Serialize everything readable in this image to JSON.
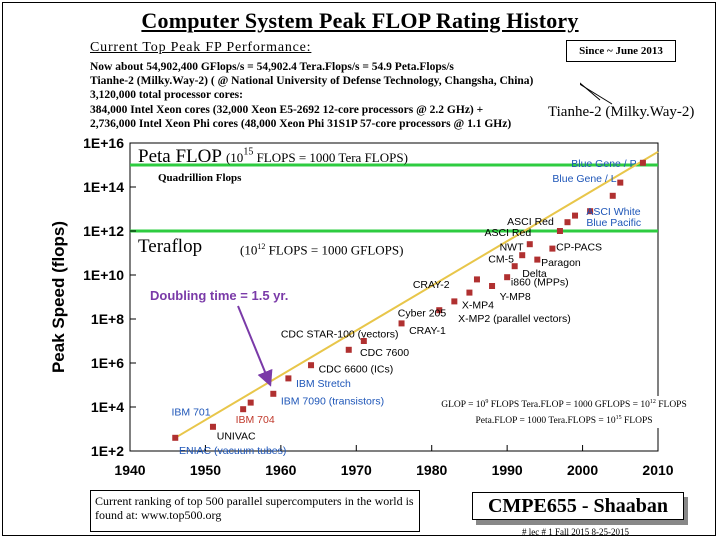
{
  "slide": {
    "title": "Computer System Peak FLOP Rating History",
    "current_perf_heading": "Current Top Peak FP Performance:",
    "current_perf_lines": [
      "Now about 54,902,400 GFlops/s = 54,902.4  Tera.Flops/s = 54.9 Peta.Flops/s",
      "Tianhe-2 (Milky.Way-2)  ( @ National University of Defense Technology, Changsha, China)",
      "3,120,000 total processor cores:",
      "384,000 Intel Xeon cores (32,000 Xeon E5-2692 12-core processors @ 2.2 GHz) +",
      "2,736,000 Intel Xeon Phi cores (48,000 Xeon Phi 31S1P 57-core processors @ 1.1 GHz)"
    ],
    "since_label": "Since ~ June 2013",
    "tianhe_label": "Tianhe-2 (Milky.Way-2)",
    "peta_title": "Peta FLOP",
    "peta_exp_base": "(10",
    "peta_exp_sup": "15",
    "peta_desc": " FLOPS = 1000 Tera FLOPS)",
    "quadrillion_label": "Quadrillion Flops",
    "tera_title": "Teraflop",
    "tera_exp_base": "(10",
    "tera_exp_sup": "12",
    "tera_desc": " FLOPS = 1000 GFLOPS)",
    "doubling_label": "Doubling time = 1.5 yr.",
    "flops_note_line1": {
      "a": "GLOP = 10",
      "a_sup": "9",
      "b": " FLOPS    Tera.FLOP = 1000  GFLOPS = 10",
      "b_sup": "12",
      "c": " FLOPS"
    },
    "flops_note_line2": {
      "a": "Peta.FLOP = 1000 Tera.FLOPS = 10",
      "a_sup": "15",
      "c": " FLOPS"
    },
    "ranking_text": "Current ranking of top 500 parallel supercomputers in the world is found at:  www.top500.org",
    "course_label": "CMPE655 - Shaaban",
    "footer": "#  lec # 1   Fall 2015   8-25-2015"
  },
  "chart_data": {
    "type": "scatter",
    "title": "Computer System Peak FLOP Rating History",
    "ylabel": "Peak Speed (flops)",
    "xlabel": "",
    "x_scale": "linear",
    "y_scale": "log10",
    "xlim": [
      1940,
      2010
    ],
    "ylim_log10": [
      2,
      16
    ],
    "x_ticks": [
      "1940",
      "1950",
      "1960",
      "1970",
      "1980",
      "1990",
      "2000",
      "2010"
    ],
    "y_ticks": [
      "1E+2",
      "1E+4",
      "1E+6",
      "1E+8",
      "1E+10",
      "1E+12",
      "1E+14",
      "1E+16"
    ],
    "grid": false,
    "reference_lines": [
      {
        "name": "Peta FLOP",
        "log10_value": 15,
        "color": "#2ecc40"
      },
      {
        "name": "Teraflop",
        "log10_value": 12,
        "color": "#2ecc40"
      }
    ],
    "trend_line": {
      "from": [
        1946,
        2.6
      ],
      "to": [
        2010,
        15.6
      ]
    },
    "points": [
      {
        "x": 1946,
        "log10": 2.6,
        "label": "ENIAC (vacuum tubes)",
        "color": "#1e56b8"
      },
      {
        "x": 1951,
        "log10": 3.1,
        "label": "UNIVAC",
        "color": "#000000"
      },
      {
        "x": 1955,
        "log10": 3.9,
        "label": "IBM 701",
        "color": "#1e56b8"
      },
      {
        "x": 1956,
        "log10": 4.2,
        "label": "IBM 704",
        "color": "#c0392b"
      },
      {
        "x": 1959,
        "log10": 4.6,
        "label": "IBM 7090 (transistors)",
        "color": "#1e56b8"
      },
      {
        "x": 1961,
        "log10": 5.3,
        "label": "IBM Stretch",
        "color": "#1e56b8"
      },
      {
        "x": 1964,
        "log10": 5.9,
        "label": "CDC 6600 (ICs)",
        "color": "#000000"
      },
      {
        "x": 1969,
        "log10": 6.6,
        "label": "CDC 7600",
        "color": "#000000"
      },
      {
        "x": 1971,
        "log10": 7.0,
        "label": "CDC STAR-100 (vectors)",
        "color": "#000000"
      },
      {
        "x": 1976,
        "log10": 7.8,
        "label": "CRAY-1",
        "color": "#000000"
      },
      {
        "x": 1981,
        "log10": 8.4,
        "label": "Cyber 205",
        "color": "#000000"
      },
      {
        "x": 1983,
        "log10": 8.8,
        "label": "X-MP2 (parallel vectors)",
        "color": "#000000"
      },
      {
        "x": 1985,
        "log10": 9.2,
        "label": "X-MP4",
        "color": "#000000"
      },
      {
        "x": 1986,
        "log10": 9.8,
        "label": "CRAY-2",
        "color": "#000000"
      },
      {
        "x": 1988,
        "log10": 9.5,
        "label": "Y-MP8",
        "color": "#000000"
      },
      {
        "x": 1990,
        "log10": 9.9,
        "label": "i860 (MPPs)",
        "color": "#000000"
      },
      {
        "x": 1991,
        "log10": 10.4,
        "label": "Delta",
        "color": "#000000"
      },
      {
        "x": 1992,
        "log10": 10.9,
        "label": "CM-5",
        "color": "#000000"
      },
      {
        "x": 1993,
        "log10": 11.4,
        "label": "NWT",
        "color": "#000000"
      },
      {
        "x": 1994,
        "log10": 10.7,
        "label": "Paragon",
        "color": "#000000"
      },
      {
        "x": 1996,
        "log10": 11.2,
        "label": "CP-PACS",
        "color": "#000000"
      },
      {
        "x": 1997,
        "log10": 12.0,
        "label": "ASCI Red",
        "color": "#000000"
      },
      {
        "x": 1998,
        "log10": 12.4,
        "label": "ASCI Red",
        "color": "#000000"
      },
      {
        "x": 1999,
        "log10": 12.7,
        "label": "Blue Pacific",
        "color": "#1e56b8"
      },
      {
        "x": 2001,
        "log10": 12.9,
        "label": "ASCI White",
        "color": "#1e56b8"
      },
      {
        "x": 2004,
        "log10": 13.6,
        "label": "Blue Gene / L",
        "color": "#1e56b8"
      },
      {
        "x": 2005,
        "log10": 14.2,
        "label": "Blue Gene / L",
        "color": "#1e56b8"
      },
      {
        "x": 2008,
        "log10": 15.1,
        "label": "Blue Gene / P",
        "color": "#1e56b8"
      }
    ],
    "text_labels": [
      {
        "text": "ENIAC (vacuum tubes)",
        "x": 1946.5,
        "log10": 2.05,
        "color": "#1e56b8"
      },
      {
        "text": "UNIVAC",
        "x": 1951.5,
        "log10": 2.7,
        "color": "#000000"
      },
      {
        "text": "IBM 701",
        "x": 1945.5,
        "log10": 3.8,
        "color": "#1e56b8"
      },
      {
        "text": "IBM 704",
        "x": 1954,
        "log10": 3.45,
        "color": "#c0392b"
      },
      {
        "text": "IBM 7090 (transistors)",
        "x": 1960,
        "log10": 4.3,
        "color": "#1e56b8"
      },
      {
        "text": "IBM Stretch",
        "x": 1962,
        "log10": 5.1,
        "color": "#1e56b8"
      },
      {
        "text": "CDC 6600 (ICs)",
        "x": 1965,
        "log10": 5.75,
        "color": "#000000"
      },
      {
        "text": "CDC 7600",
        "x": 1970.5,
        "log10": 6.5,
        "color": "#000000"
      },
      {
        "text": "CDC STAR-100 (vectors)",
        "x": 1960,
        "log10": 7.35,
        "color": "#000000"
      },
      {
        "text": "CRAY-1",
        "x": 1977,
        "log10": 7.5,
        "color": "#000000"
      },
      {
        "text": "Cyber 205",
        "x": 1975.5,
        "log10": 8.3,
        "color": "#000000"
      },
      {
        "text": "X-MP2 (parallel vectors)",
        "x": 1983.5,
        "log10": 8.05,
        "color": "#000000"
      },
      {
        "text": "X-MP4",
        "x": 1984,
        "log10": 8.65,
        "color": "#000000"
      },
      {
        "text": "Y-MP8",
        "x": 1989,
        "log10": 9.05,
        "color": "#000000"
      },
      {
        "text": "CRAY-2",
        "x": 1977.5,
        "log10": 9.6,
        "color": "#000000"
      },
      {
        "text": "i860 (MPPs)",
        "x": 1990.5,
        "log10": 9.7,
        "color": "#000000"
      },
      {
        "text": "Delta",
        "x": 1992,
        "log10": 10.1,
        "color": "#000000"
      },
      {
        "text": "Paragon",
        "x": 1994.5,
        "log10": 10.6,
        "color": "#000000"
      },
      {
        "text": "CM-5",
        "x": 1987.5,
        "log10": 10.75,
        "color": "#000000"
      },
      {
        "text": "NWT",
        "x": 1989,
        "log10": 11.3,
        "color": "#000000"
      },
      {
        "text": "CP-PACS",
        "x": 1996.5,
        "log10": 11.3,
        "color": "#000000"
      },
      {
        "text": "ASCI Red",
        "x": 1987,
        "log10": 11.95,
        "color": "#000000"
      },
      {
        "text": "ASCI Red",
        "x": 1990,
        "log10": 12.45,
        "color": "#000000"
      },
      {
        "text": "ASCI White",
        "x": 2000.5,
        "log10": 12.9,
        "color": "#1e56b8"
      },
      {
        "text": "Blue Pacific",
        "x": 2000.5,
        "log10": 12.4,
        "color": "#1e56b8"
      },
      {
        "text": "Blue Gene / L",
        "x": 1996,
        "log10": 14.4,
        "color": "#1e56b8"
      },
      {
        "text": "Blue Gene / P",
        "x": 1998.5,
        "log10": 15.1,
        "color": "#1e56b8"
      }
    ]
  }
}
